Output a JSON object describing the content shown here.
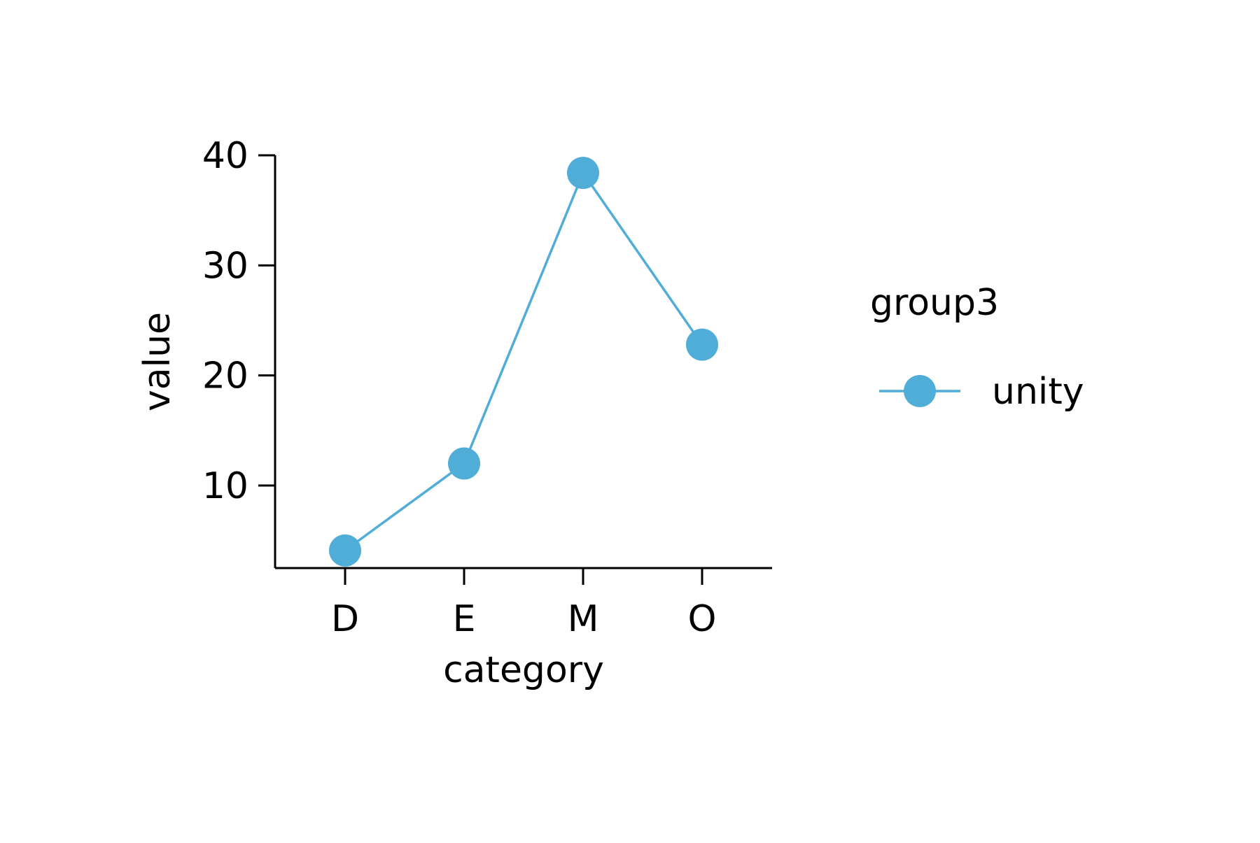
{
  "chart_data": {
    "type": "line",
    "xlabel": "category",
    "ylabel": "value",
    "categories": [
      "D",
      "E",
      "M",
      "O"
    ],
    "series": [
      {
        "name": "unity",
        "values": [
          4.1,
          12.0,
          38.4,
          22.8
        ],
        "color": "#4fadd7"
      }
    ],
    "ylim": [
      2.5,
      40
    ],
    "yticks": [
      10,
      20,
      30,
      40
    ],
    "grid": false,
    "marker": "circle",
    "legend": {
      "title": "group3",
      "position": "right"
    }
  }
}
